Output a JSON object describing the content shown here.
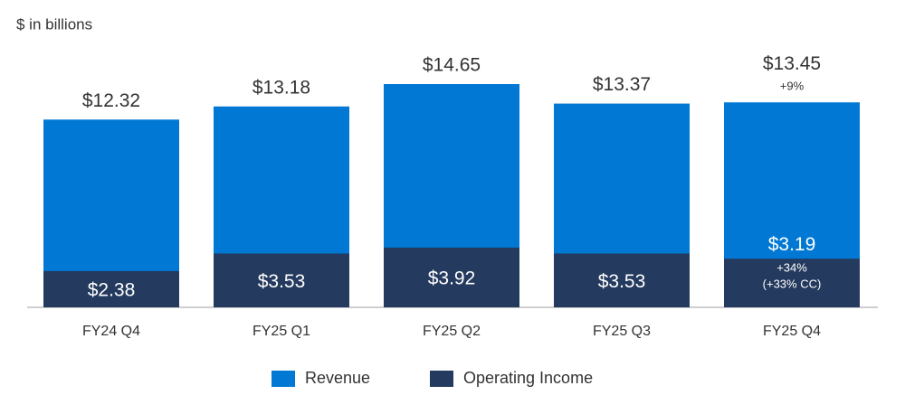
{
  "chart_data": {
    "type": "bar",
    "subtitle": "$ in billions",
    "categories": [
      "FY24 Q4",
      "FY25 Q1",
      "FY25 Q2",
      "FY25 Q3",
      "FY25 Q4"
    ],
    "series": [
      {
        "name": "Revenue",
        "color": "#0078d4",
        "values": [
          12.32,
          13.18,
          14.65,
          13.37,
          13.45
        ],
        "value_labels": [
          "$12.32",
          "$13.18",
          "$14.65",
          "$13.37",
          "$13.45"
        ],
        "annotations": [
          null,
          null,
          null,
          null,
          [
            "+9%"
          ]
        ]
      },
      {
        "name": "Operating Income",
        "color": "#243a5e",
        "values": [
          2.38,
          3.53,
          3.92,
          3.53,
          3.19
        ],
        "value_labels": [
          "$2.38",
          "$3.53",
          "$3.92",
          "$3.53",
          "$3.19"
        ],
        "annotations": [
          null,
          null,
          null,
          null,
          [
            "+34%",
            "(+33% CC)"
          ]
        ]
      }
    ]
  }
}
